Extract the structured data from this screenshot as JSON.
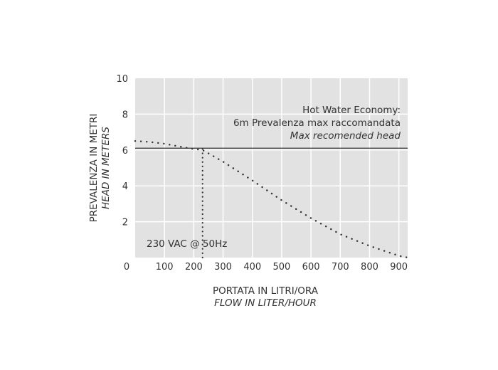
{
  "chart_data": {
    "type": "line",
    "title": "",
    "xlabel": "PORTATA IN LITRI/ORA",
    "xlabel_en": "FLOW IN LITER/HOUR",
    "ylabel": "PREVALENZA IN METRI",
    "ylabel_en": "HEAD IN METERS",
    "x_ticks": [
      "0",
      "100",
      "200",
      "300",
      "400",
      "500",
      "600",
      "700",
      "800",
      "900"
    ],
    "y_ticks": [
      "10",
      "8",
      "6",
      "4",
      "2"
    ],
    "xlim": [
      0,
      930
    ],
    "ylim": [
      0,
      10
    ],
    "grid": true,
    "colors": {
      "background": "#e2e2e2",
      "grid": "#ffffff",
      "line": "#333333"
    },
    "series": [
      {
        "name": "230 VAC @ 50Hz",
        "style": "dotted",
        "x": [
          0,
          50,
          100,
          150,
          200,
          230,
          300,
          400,
          500,
          600,
          700,
          800,
          900,
          930
        ],
        "y": [
          6.5,
          6.45,
          6.35,
          6.2,
          6.05,
          6.0,
          5.35,
          4.3,
          3.2,
          2.2,
          1.3,
          0.65,
          0.1,
          0.0
        ]
      }
    ],
    "reference_line": {
      "y": 6.1
    },
    "marker_line": {
      "x": 230,
      "y_from": 0,
      "y_to": 6.1
    },
    "annotations": {
      "line1": "Hot Water Economy:",
      "line2": "6m Prevalenza max raccomandata",
      "line3": "Max recomended head",
      "curve_label": "230 VAC @ 50Hz"
    }
  }
}
